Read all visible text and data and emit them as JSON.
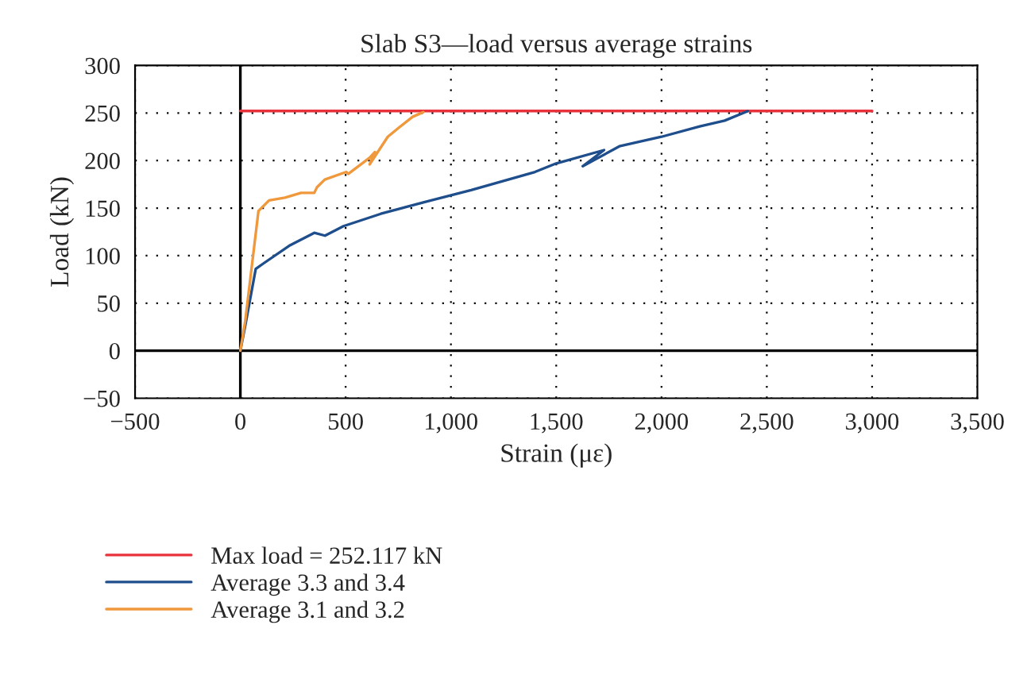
{
  "chart_data": {
    "type": "line",
    "title": "Slab S3—load versus average strains",
    "xlabel": "Strain (με)",
    "ylabel": "Load (kN)",
    "xlim": [
      -500,
      3500
    ],
    "ylim": [
      -50,
      300
    ],
    "xticks": [
      {
        "value": -500,
        "label": "−500"
      },
      0,
      500,
      {
        "value": 1000,
        "label": "1,000"
      },
      {
        "value": 1500,
        "label": "1,500"
      },
      {
        "value": 2000,
        "label": "2,000"
      },
      {
        "value": 2500,
        "label": "2,500"
      },
      {
        "value": 3000,
        "label": "3,000"
      },
      {
        "value": 3500,
        "label": "3,500"
      }
    ],
    "yticks": [
      {
        "value": -50,
        "label": "−50"
      },
      0,
      50,
      100,
      150,
      200,
      250,
      300
    ],
    "grid": true,
    "legend": "bottom left",
    "line_style": "solid",
    "marker": "none",
    "series": [
      {
        "name": "Max load = 252.117 kN",
        "color": "#e8323c",
        "x": [
          0,
          3000
        ],
        "values": [
          252.117,
          252.117
        ]
      },
      {
        "name": "Average 3.3 and 3.4",
        "color": "#1f4e8c",
        "x": [
          0,
          23,
          73,
          111,
          237,
          351,
          402,
          490,
          667,
          869,
          1096,
          1399,
          1500,
          1727,
          1626,
          1800,
          2000,
          2182,
          2300,
          2409
        ],
        "values": [
          0,
          26,
          86,
          92,
          111,
          124,
          121,
          131,
          144,
          156,
          169,
          188,
          197,
          211,
          194,
          215,
          225,
          236,
          242,
          252
        ]
      },
      {
        "name": "Average 3.1 and 3.2",
        "color": "#f0983c",
        "x": [
          0,
          23,
          86,
          136,
          212,
          288,
          351,
          364,
          401,
          503,
          513,
          614,
          639,
          614,
          700,
          755,
          818,
          869
        ],
        "values": [
          0,
          31,
          147,
          158,
          161,
          166,
          166,
          172,
          180,
          188,
          186,
          203,
          209,
          196,
          225,
          235,
          246,
          251
        ]
      }
    ]
  }
}
